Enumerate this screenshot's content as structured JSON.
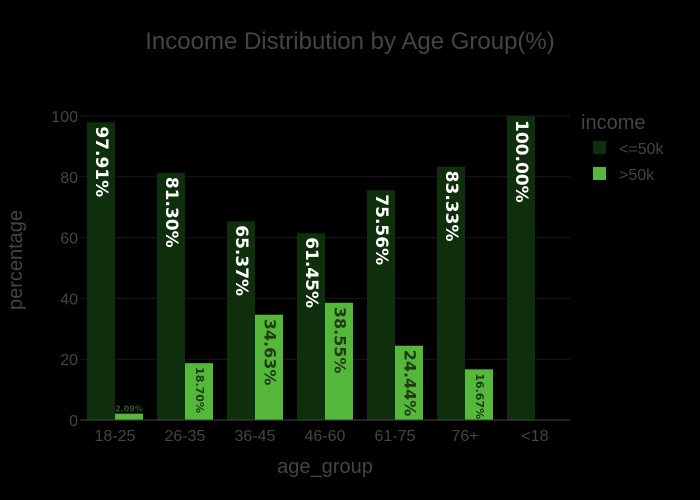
{
  "chart_data": {
    "type": "bar",
    "title": "Incoome Distribution by Age Group(%)",
    "xlabel": "age_group",
    "ylabel": "percentage",
    "categories": [
      "18-25",
      "26-35",
      "36-45",
      "46-60",
      "61-75",
      "76+",
      "<18"
    ],
    "ylim": [
      0,
      100
    ],
    "yticks": [
      0,
      20,
      40,
      60,
      80,
      100
    ],
    "legend": {
      "title": "income",
      "position": "top-right"
    },
    "series": [
      {
        "name": "<=50k",
        "color": "#0f2e0b",
        "values": [
          97.91,
          81.3,
          65.37,
          61.45,
          75.56,
          83.33,
          100.0
        ],
        "labels": [
          "97.91%",
          "81.30%",
          "65.37%",
          "61.45%",
          "75.56%",
          "83.33%",
          "100.00%"
        ]
      },
      {
        "name": ">50k",
        "color": "#55b83a",
        "values": [
          2.09,
          18.7,
          34.63,
          38.55,
          24.44,
          16.67,
          0
        ],
        "labels": [
          "2.09%",
          "18.70%",
          "34.63%",
          "38.55%",
          "24.44%",
          "16.67%",
          ""
        ]
      }
    ],
    "grid": true,
    "background": "#000000",
    "text_color": "#444444"
  }
}
